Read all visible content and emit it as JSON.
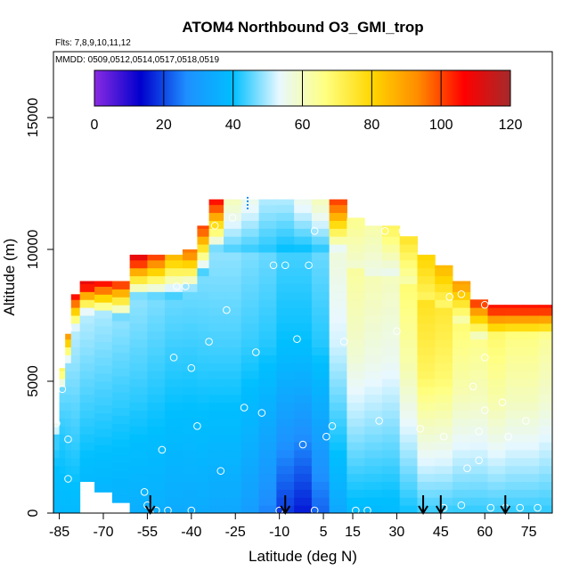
{
  "chart_data": {
    "type": "heatmap",
    "title": "ATOM4 Northbound O3_GMI_trop",
    "subtitle_flights": "Flts: 7,8,9,10,11,12",
    "subtitle_dates": "MMDD: 0509,0512,0514,0517,0518,0519",
    "xlabel": "Latitude (deg N)",
    "ylabel": "Altitude (m)",
    "xlim": [
      -87,
      83
    ],
    "ylim": [
      0,
      17500
    ],
    "x_ticks": [
      -85,
      -70,
      -55,
      -40,
      -25,
      -10,
      5,
      15,
      30,
      45,
      60,
      75
    ],
    "y_ticks": [
      0,
      5000,
      10000,
      15000
    ],
    "colorbar": {
      "min": 0,
      "max": 120,
      "ticks": [
        0,
        20,
        40,
        60,
        80,
        100,
        120
      ],
      "colors": [
        "#8a2be2",
        "#0000cd",
        "#1e90ff",
        "#00bfff",
        "#e8f8ff",
        "#ffff80",
        "#ffd700",
        "#ff8c00",
        "#ff0000",
        "#a52a2a"
      ]
    },
    "arrows_latitude": [
      -54,
      -8,
      39,
      45,
      67
    ],
    "columns": [
      {
        "x": -86,
        "top": 3400,
        "bottom": 0,
        "topval": 55,
        "midval": 40,
        "lowval": 38
      },
      {
        "x": -84,
        "top": 5500,
        "bottom": 0,
        "topval": 70,
        "midval": 42,
        "lowval": 38
      },
      {
        "x": -82,
        "top": 6800,
        "bottom": 0,
        "topval": 90,
        "midval": 44,
        "lowval": 38
      },
      {
        "x": -80,
        "top": 8300,
        "bottom": 0,
        "topval": 105,
        "midval": 46,
        "lowval": 38
      },
      {
        "x": -76,
        "top": 8800,
        "bottom": 1200,
        "topval": 110,
        "midval": 46,
        "lowval": 38
      },
      {
        "x": -70,
        "top": 8800,
        "bottom": 800,
        "topval": 105,
        "midval": 45,
        "lowval": 37
      },
      {
        "x": -64,
        "top": 8800,
        "bottom": 400,
        "topval": 100,
        "midval": 44,
        "lowval": 36
      },
      {
        "x": -58,
        "top": 9800,
        "bottom": 0,
        "topval": 110,
        "midval": 44,
        "lowval": 35
      },
      {
        "x": -52,
        "top": 9800,
        "bottom": 0,
        "topval": 100,
        "midval": 43,
        "lowval": 35
      },
      {
        "x": -46,
        "top": 9800,
        "bottom": 0,
        "topval": 85,
        "midval": 42,
        "lowval": 34
      },
      {
        "x": -40,
        "top": 10000,
        "bottom": 0,
        "topval": 95,
        "midval": 42,
        "lowval": 34
      },
      {
        "x": -36,
        "top": 10900,
        "bottom": 0,
        "topval": 100,
        "midval": 43,
        "lowval": 34
      },
      {
        "x": -32,
        "top": 11900,
        "bottom": 0,
        "topval": 105,
        "midval": 44,
        "lowval": 33
      },
      {
        "x": -26,
        "top": 11900,
        "bottom": 0,
        "topval": 60,
        "midval": 44,
        "lowval": 33
      },
      {
        "x": -20,
        "top": 11900,
        "bottom": 0,
        "topval": 55,
        "midval": 43,
        "lowval": 30
      },
      {
        "x": -14,
        "top": 11900,
        "bottom": 0,
        "topval": 50,
        "midval": 42,
        "lowval": 25
      },
      {
        "x": -8,
        "top": 11900,
        "bottom": 0,
        "topval": 50,
        "midval": 40,
        "lowval": 18
      },
      {
        "x": -2,
        "top": 11900,
        "bottom": 0,
        "topval": 55,
        "midval": 40,
        "lowval": 15
      },
      {
        "x": 4,
        "top": 11900,
        "bottom": 0,
        "topval": 60,
        "midval": 42,
        "lowval": 22
      },
      {
        "x": 10,
        "top": 11900,
        "bottom": 0,
        "topval": 100,
        "midval": 52,
        "lowval": 33
      },
      {
        "x": 16,
        "top": 11200,
        "bottom": 0,
        "topval": 65,
        "midval": 58,
        "lowval": 38
      },
      {
        "x": 22,
        "top": 10900,
        "bottom": 0,
        "topval": 62,
        "midval": 56,
        "lowval": 38
      },
      {
        "x": 28,
        "top": 10900,
        "bottom": 0,
        "topval": 70,
        "midval": 55,
        "lowval": 38
      },
      {
        "x": 34,
        "top": 10500,
        "bottom": 0,
        "topval": 75,
        "midval": 62,
        "lowval": 40
      },
      {
        "x": 40,
        "top": 9800,
        "bottom": 0,
        "topval": 80,
        "midval": 70,
        "lowval": 42
      },
      {
        "x": 46,
        "top": 9400,
        "bottom": 0,
        "topval": 85,
        "midval": 68,
        "lowval": 42
      },
      {
        "x": 52,
        "top": 8800,
        "bottom": 0,
        "topval": 90,
        "midval": 62,
        "lowval": 42
      },
      {
        "x": 58,
        "top": 8100,
        "bottom": 0,
        "topval": 100,
        "midval": 60,
        "lowval": 42
      },
      {
        "x": 64,
        "top": 7900,
        "bottom": 0,
        "topval": 105,
        "midval": 62,
        "lowval": 42
      },
      {
        "x": 70,
        "top": 7900,
        "bottom": 0,
        "topval": 105,
        "midval": 60,
        "lowval": 42
      },
      {
        "x": 76,
        "top": 7900,
        "bottom": 0,
        "topval": 105,
        "midval": 60,
        "lowval": 42
      },
      {
        "x": 81,
        "top": 7900,
        "bottom": 0,
        "topval": 105,
        "midval": 58,
        "lowval": 42
      }
    ],
    "points": [
      [
        -86,
        3400
      ],
      [
        -82,
        7000
      ],
      [
        -84,
        4700
      ],
      [
        -82,
        2800
      ],
      [
        -82,
        1300
      ],
      [
        -56,
        800
      ],
      [
        -55,
        300
      ],
      [
        -52,
        100
      ],
      [
        -48,
        100
      ],
      [
        -40,
        100
      ],
      [
        -50,
        2400
      ],
      [
        -46,
        5900
      ],
      [
        -38,
        3300
      ],
      [
        -40,
        5500
      ],
      [
        -34,
        6500
      ],
      [
        -45,
        8600
      ],
      [
        -42,
        8600
      ],
      [
        -28,
        7700
      ],
      [
        -30,
        1600
      ],
      [
        -22,
        4000
      ],
      [
        -16,
        3800
      ],
      [
        -18,
        6100
      ],
      [
        -32,
        10900
      ],
      [
        -26,
        11200
      ],
      [
        -12,
        9400
      ],
      [
        -8,
        9400
      ],
      [
        -4,
        6600
      ],
      [
        -2,
        2600
      ],
      [
        0,
        9400
      ],
      [
        2,
        10700
      ],
      [
        2,
        100
      ],
      [
        -10,
        100
      ],
      [
        6,
        2900
      ],
      [
        8,
        3300
      ],
      [
        12,
        6500
      ],
      [
        16,
        100
      ],
      [
        20,
        100
      ],
      [
        24,
        3500
      ],
      [
        26,
        10700
      ],
      [
        30,
        6900
      ],
      [
        32,
        10700
      ],
      [
        38,
        3200
      ],
      [
        46,
        200
      ],
      [
        46,
        2900
      ],
      [
        52,
        300
      ],
      [
        54,
        1700
      ],
      [
        56,
        4800
      ],
      [
        58,
        2000
      ],
      [
        58,
        3100
      ],
      [
        60,
        5900
      ],
      [
        60,
        3900
      ],
      [
        62,
        200
      ],
      [
        66,
        4200
      ],
      [
        67,
        200
      ],
      [
        68,
        2900
      ],
      [
        72,
        200
      ],
      [
        74,
        3500
      ],
      [
        78,
        200
      ],
      [
        52,
        8300
      ],
      [
        48,
        8200
      ],
      [
        60,
        7900
      ]
    ]
  }
}
